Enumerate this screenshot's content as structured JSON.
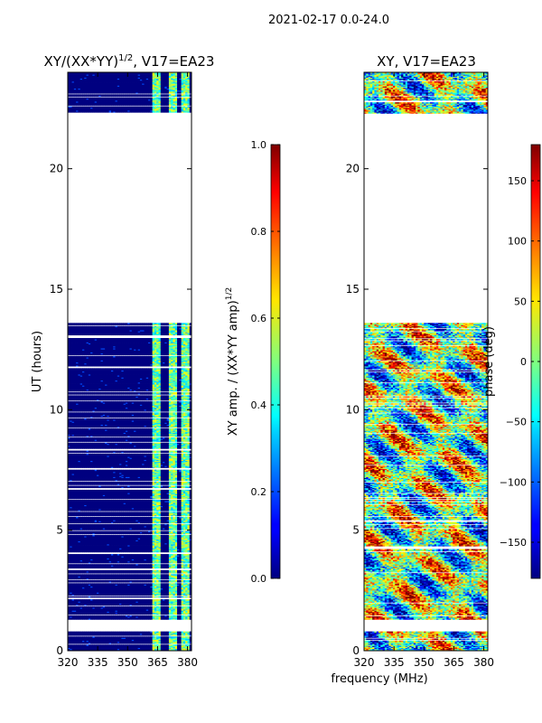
{
  "figure": {
    "suptitle": "2021-02-17 0.0-24.0",
    "xlabel": "frequency (MHz)"
  },
  "chart_data": [
    {
      "type": "heatmap",
      "title_main": "XY/(XX*YY)",
      "title_exp": "1/2",
      "title_tail": ", V17=EA23",
      "xlabel": "",
      "ylabel": "UT (hours)",
      "xlim": [
        320,
        382
      ],
      "ylim": [
        0,
        24
      ],
      "xticks": [
        "320",
        "335",
        "350",
        "365",
        "380"
      ],
      "xtick_values": [
        320,
        335,
        350,
        365,
        380
      ],
      "yticks": [
        "0",
        "5",
        "10",
        "15",
        "20"
      ],
      "ytick_values": [
        0,
        5,
        10,
        15,
        20
      ],
      "data_ut_ranges": [
        [
          0,
          0.8
        ],
        [
          1.3,
          13.6
        ],
        [
          22.3,
          24.0
        ]
      ],
      "gap_ut_ranges": [
        [
          0.8,
          1.3
        ],
        [
          13.6,
          22.3
        ]
      ],
      "high_signal_freq_ranges": [
        [
          362,
          367
        ],
        [
          371,
          375
        ],
        [
          377,
          381
        ]
      ],
      "colorbar": {
        "label_main": "XY amp. / (XX*YY amp)",
        "label_exp": "1/2",
        "ticks": [
          "0.0",
          "0.2",
          "0.4",
          "0.6",
          "0.8",
          "1.0"
        ],
        "tick_values": [
          0,
          0.2,
          0.4,
          0.6,
          0.8,
          1.0
        ],
        "range": [
          0,
          1
        ]
      }
    },
    {
      "type": "heatmap",
      "title": "XY, V17=EA23",
      "xlabel": "",
      "ylabel": "",
      "xlim": [
        320,
        382
      ],
      "ylim": [
        0,
        24
      ],
      "xticks": [
        "320",
        "335",
        "350",
        "365",
        "380"
      ],
      "xtick_values": [
        320,
        335,
        350,
        365,
        380
      ],
      "yticks": [
        "0",
        "5",
        "10",
        "15",
        "20"
      ],
      "ytick_values": [
        0,
        5,
        10,
        15,
        20
      ],
      "data_ut_ranges": [
        [
          0,
          0.8
        ],
        [
          1.3,
          13.6
        ],
        [
          22.3,
          24.0
        ]
      ],
      "gap_ut_ranges": [
        [
          0.8,
          1.3
        ],
        [
          13.6,
          22.3
        ]
      ],
      "colorbar": {
        "label": "phase (deg)",
        "ticks": [
          "−150",
          "−100",
          "−50",
          "0",
          "50",
          "100",
          "150"
        ],
        "tick_values": [
          -150,
          -100,
          -50,
          0,
          50,
          100,
          150
        ],
        "range": [
          -180,
          180
        ]
      }
    }
  ]
}
